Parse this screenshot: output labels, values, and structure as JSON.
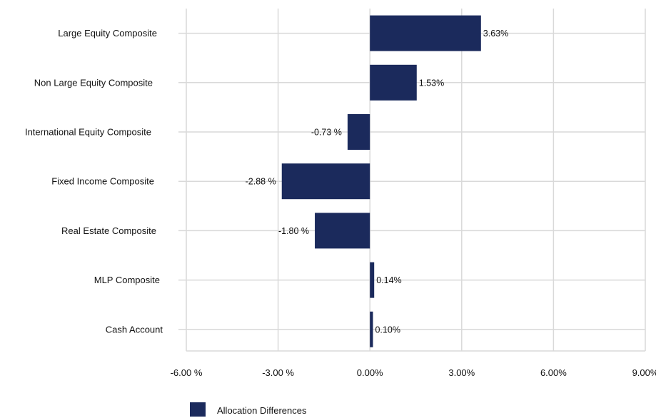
{
  "chart_data": {
    "type": "bar",
    "orientation": "horizontal",
    "categories": [
      "Large Equity Composite",
      "Non Large Equity Composite",
      "International Equity Composite",
      "Fixed Income Composite",
      "Real Estate Composite",
      "MLP Composite",
      "Cash Account"
    ],
    "series": [
      {
        "name": "Allocation Differences",
        "values": [
          3.63,
          1.53,
          -0.73,
          -2.88,
          -1.8,
          0.14,
          0.1
        ],
        "data_labels": [
          "3.63%",
          "1.53%",
          "-0.73 %",
          "-2.88 %",
          "-1.80 %",
          "0.14%",
          "0.10%"
        ],
        "color": "#1b2a5c"
      }
    ],
    "xlim": [
      -6,
      9
    ],
    "xticks": [
      -6,
      -3,
      0,
      3,
      6,
      9
    ],
    "xtick_labels": [
      "-6.00 %",
      "-3.00 %",
      "0.00%",
      "3.00%",
      "6.00%",
      "9.00%"
    ],
    "grid": true,
    "grid_color": "#d9d9d9",
    "legend_position": "bottom-left"
  }
}
